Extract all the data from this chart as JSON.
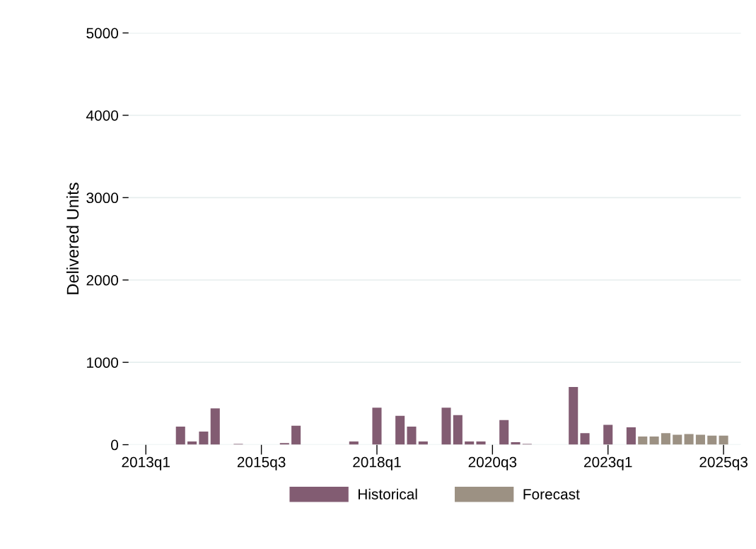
{
  "chart_data": {
    "type": "bar",
    "ylabel": "Delivered Units",
    "categories": [
      "2013q1",
      null,
      null,
      null,
      null,
      null,
      null,
      null,
      null,
      null,
      "2015q3",
      null,
      null,
      null,
      null,
      null,
      null,
      null,
      null,
      null,
      "2018q1",
      null,
      null,
      null,
      null,
      null,
      null,
      null,
      null,
      null,
      "2020q3",
      null,
      null,
      null,
      null,
      null,
      null,
      null,
      null,
      null,
      "2023q1",
      null,
      null,
      null,
      null,
      null,
      null,
      null,
      null,
      null,
      "2025q3"
    ],
    "series": [
      {
        "name": "Historical",
        "color": "#825c72",
        "values": [
          0,
          0,
          0,
          220,
          40,
          160,
          440,
          0,
          10,
          0,
          0,
          0,
          20,
          230,
          0,
          0,
          0,
          0,
          40,
          0,
          450,
          0,
          350,
          220,
          40,
          0,
          450,
          360,
          40,
          40,
          0,
          300,
          30,
          10,
          0,
          0,
          0,
          700,
          140,
          0,
          240,
          0,
          210,
          null,
          null,
          null,
          null,
          null,
          null,
          null,
          null
        ]
      },
      {
        "name": "Forecast",
        "color": "#9c9183",
        "values": [
          null,
          null,
          null,
          null,
          null,
          null,
          null,
          null,
          null,
          null,
          null,
          null,
          null,
          null,
          null,
          null,
          null,
          null,
          null,
          null,
          null,
          null,
          null,
          null,
          null,
          null,
          null,
          null,
          null,
          null,
          null,
          null,
          null,
          null,
          null,
          null,
          null,
          null,
          null,
          null,
          null,
          null,
          null,
          100,
          100,
          140,
          120,
          130,
          120,
          110,
          110
        ]
      }
    ],
    "ylim": [
      0,
      5000
    ],
    "yticks": [
      0,
      1000,
      2000,
      3000,
      4000,
      5000
    ],
    "grid": "y",
    "legend": "bottom"
  }
}
